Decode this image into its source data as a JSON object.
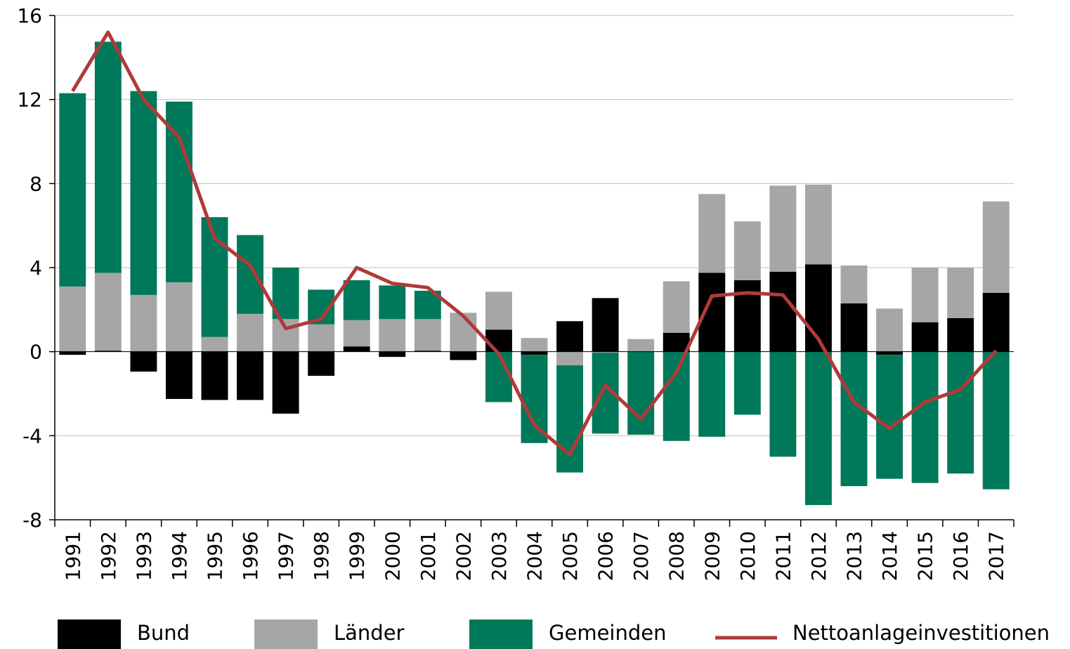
{
  "chart_data": {
    "type": "bar",
    "stacked": true,
    "categories": [
      "1991",
      "1992",
      "1993",
      "1994",
      "1995",
      "1996",
      "1997",
      "1998",
      "1999",
      "2000",
      "2001",
      "2002",
      "2003",
      "2004",
      "2005",
      "2006",
      "2007",
      "2008",
      "2009",
      "2010",
      "2011",
      "2012",
      "2013",
      "2014",
      "2015",
      "2016",
      "2017"
    ],
    "series": [
      {
        "name": "Bund",
        "color": "#000000",
        "values": [
          -0.15,
          0.05,
          -0.95,
          -2.25,
          -2.3,
          -2.3,
          -2.95,
          -1.15,
          0.25,
          -0.25,
          0.05,
          -0.4,
          1.05,
          -0.15,
          1.45,
          2.55,
          0,
          0.9,
          3.75,
          3.4,
          3.8,
          4.15,
          2.3,
          -0.15,
          1.4,
          1.6,
          2.8
        ]
      },
      {
        "name": "Länder",
        "color": "#a6a6a6",
        "values": [
          3.1,
          3.7,
          2.7,
          3.3,
          0.7,
          1.8,
          1.55,
          1.3,
          1.25,
          1.55,
          1.5,
          1.85,
          1.8,
          0.65,
          -0.65,
          -0.05,
          0.6,
          2.45,
          3.75,
          2.8,
          4.1,
          3.8,
          1.8,
          2.05,
          2.6,
          2.4,
          4.35
        ]
      },
      {
        "name": "Gemeinden",
        "color": "#00785a",
        "values": [
          9.2,
          11.0,
          9.7,
          8.6,
          5.7,
          3.75,
          2.45,
          1.65,
          1.9,
          1.6,
          1.35,
          0,
          -2.4,
          -4.2,
          -5.1,
          -3.85,
          -3.95,
          -4.25,
          -4.05,
          -3.0,
          -5.0,
          -7.3,
          -6.4,
          -5.9,
          -6.25,
          -5.8,
          -6.55
        ]
      },
      {
        "name": "Nettoanlageinvestitionen",
        "type": "line",
        "color": "#b03a3a",
        "values": [
          12.4,
          15.2,
          12.0,
          10.2,
          5.4,
          4.1,
          1.1,
          1.55,
          4.0,
          3.25,
          3.05,
          1.7,
          -0.1,
          -3.5,
          -4.9,
          -1.6,
          -3.2,
          -1.0,
          2.65,
          2.8,
          2.7,
          0.6,
          -2.4,
          -3.65,
          -2.4,
          -1.8,
          0.05
        ]
      }
    ],
    "ylim": [
      -8,
      16
    ],
    "yticks": [
      -8,
      -4,
      0,
      4,
      8,
      12,
      16
    ],
    "grid": true,
    "legend": "bottom"
  }
}
